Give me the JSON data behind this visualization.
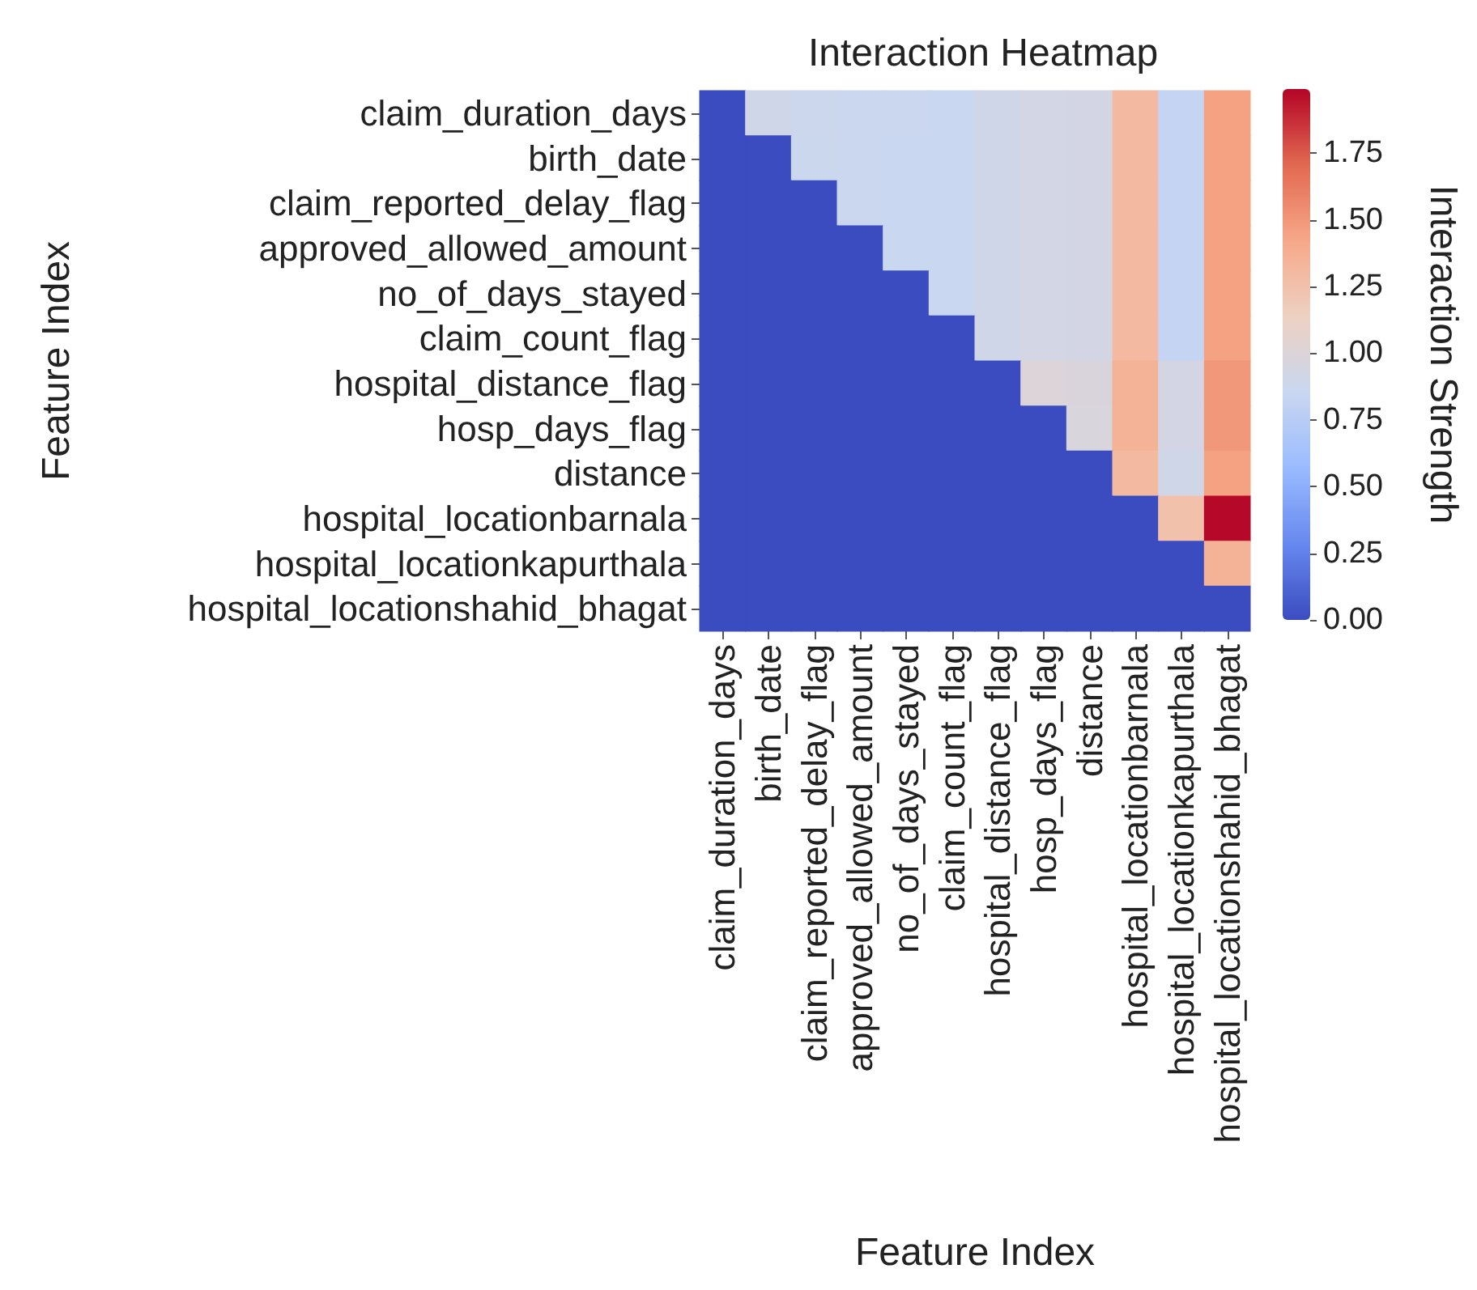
{
  "chart_data": {
    "type": "heatmap",
    "title": "Interaction Heatmap",
    "xlabel": "Feature Index",
    "ylabel": "Feature Index",
    "clabel": "Interaction Strength",
    "categories": [
      "claim_duration_days",
      "birth_date",
      "claim_reported_delay_flag",
      "approved_allowed_amount",
      "no_of_days_stayed",
      "claim_count_flag",
      "hospital_distance_flag",
      "hosp_days_flag",
      "distance",
      "hospital_locationbarnala",
      "hospital_locationkapurthala",
      "hospital_locationshahid_bhagat"
    ],
    "y_categories": [
      "claim_duration_days",
      "birth_date",
      "claim_reported_delay_flag",
      "approved_allowed_amount",
      "no_of_days_stayed",
      "claim_count_flag",
      "hospital_distance_flag",
      "hosp_days_flag",
      "distance",
      "hospital_locationbarnala",
      "hospital_locationkapurthala",
      "hospital_locationshahid_bhagat"
    ],
    "cells": [
      [
        0,
        0.9,
        0.88,
        0.86,
        0.86,
        0.85,
        0.9,
        0.92,
        0.93,
        1.3,
        0.82,
        1.45
      ],
      [
        0,
        0,
        0.87,
        0.86,
        0.85,
        0.85,
        0.9,
        0.92,
        0.93,
        1.3,
        0.82,
        1.45
      ],
      [
        0,
        0,
        0,
        0.86,
        0.85,
        0.85,
        0.9,
        0.92,
        0.93,
        1.3,
        0.82,
        1.45
      ],
      [
        0,
        0,
        0,
        0,
        0.85,
        0.85,
        0.9,
        0.92,
        0.93,
        1.3,
        0.82,
        1.45
      ],
      [
        0,
        0,
        0,
        0,
        0,
        0.85,
        0.9,
        0.92,
        0.93,
        1.3,
        0.82,
        1.45
      ],
      [
        0,
        0,
        0,
        0,
        0,
        0,
        0.9,
        0.92,
        0.93,
        1.3,
        0.82,
        1.45
      ],
      [
        0,
        0,
        0,
        0,
        0,
        0,
        0,
        1.0,
        0.98,
        1.35,
        0.93,
        1.5
      ],
      [
        0,
        0,
        0,
        0,
        0,
        0,
        0,
        0,
        0.97,
        1.35,
        0.93,
        1.5
      ],
      [
        0,
        0,
        0,
        0,
        0,
        0,
        0,
        0,
        0,
        1.3,
        0.9,
        1.45
      ],
      [
        0,
        0,
        0,
        0,
        0,
        0,
        0,
        0,
        0,
        0,
        1.25,
        1.98
      ],
      [
        0,
        0,
        0,
        0,
        0,
        0,
        0,
        0,
        0,
        0,
        0,
        1.35
      ],
      [
        0,
        0,
        0,
        0,
        0,
        0,
        0,
        0,
        0,
        0,
        0,
        0
      ]
    ],
    "clim": [
      0,
      1.99
    ],
    "cticks": [
      {
        "value": 0,
        "label": "0.00"
      },
      {
        "value": 0.25,
        "label": "0.25"
      },
      {
        "value": 0.5,
        "label": "0.50"
      },
      {
        "value": 0.75,
        "label": "0.75"
      },
      {
        "value": 1,
        "label": "1.00"
      },
      {
        "value": 1.25,
        "label": "1.25"
      },
      {
        "value": 1.5,
        "label": "1.50"
      },
      {
        "value": 1.75,
        "label": "1.75"
      }
    ]
  }
}
